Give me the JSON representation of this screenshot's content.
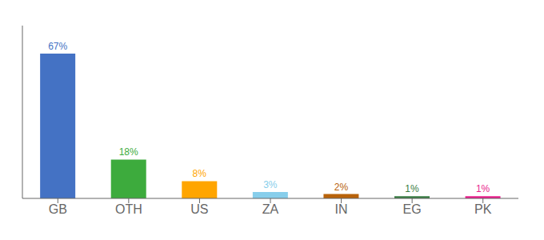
{
  "chart_data": {
    "type": "bar",
    "categories": [
      "GB",
      "OTH",
      "US",
      "ZA",
      "IN",
      "EG",
      "PK"
    ],
    "values": [
      67,
      18,
      8,
      3,
      2,
      1,
      1
    ],
    "value_labels": [
      "67%",
      "18%",
      "8%",
      "3%",
      "2%",
      "1%",
      "1%"
    ],
    "data_labels": true,
    "colors": [
      "#4472c4",
      "#3dab3d",
      "#ffa500",
      "#87ceeb",
      "#b8620a",
      "#3a7d44",
      "#e91e8c"
    ],
    "ylim": [
      0,
      80
    ],
    "tick_labels": "x",
    "grid": false
  }
}
